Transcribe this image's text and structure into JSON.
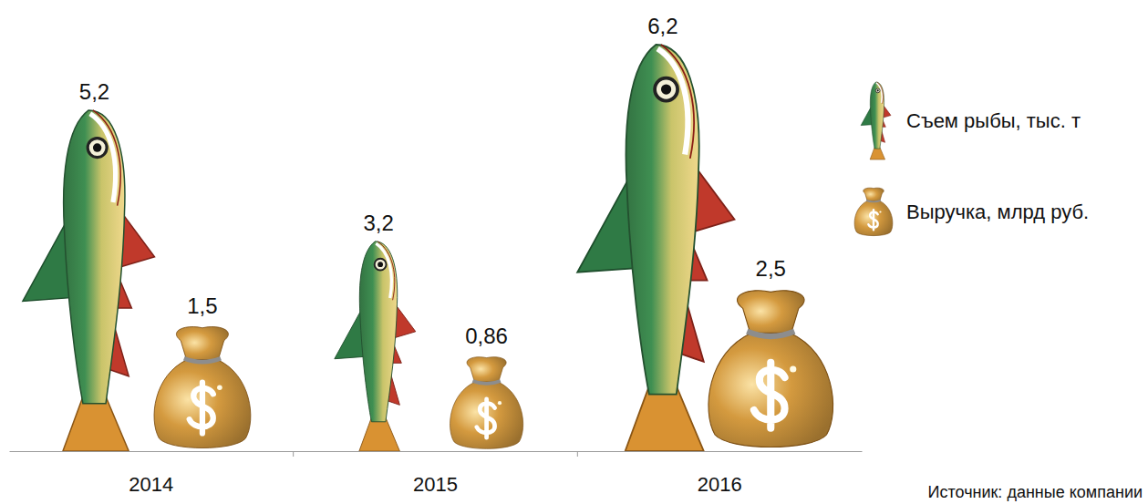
{
  "chart_data": {
    "type": "bar",
    "categories": [
      "2014",
      "2015",
      "2016"
    ],
    "series": [
      {
        "name": "Съем рыбы, тыс. т",
        "color": "#3f8f52",
        "marker": "fish",
        "values": [
          5.2,
          3.2,
          6.2
        ],
        "value_labels": [
          "5,2",
          "3,2",
          "6,2"
        ]
      },
      {
        "name": "Выручка, млрд руб.",
        "color": "#d49a3f",
        "marker": "bag",
        "values": [
          1.5,
          0.86,
          2.5
        ],
        "value_labels": [
          "1,5",
          "0,86",
          "2,5"
        ]
      }
    ],
    "data_labels": true,
    "legend": "right",
    "tick_labels": "x",
    "annotations": [
      "Источник: данные компании"
    ]
  }
}
